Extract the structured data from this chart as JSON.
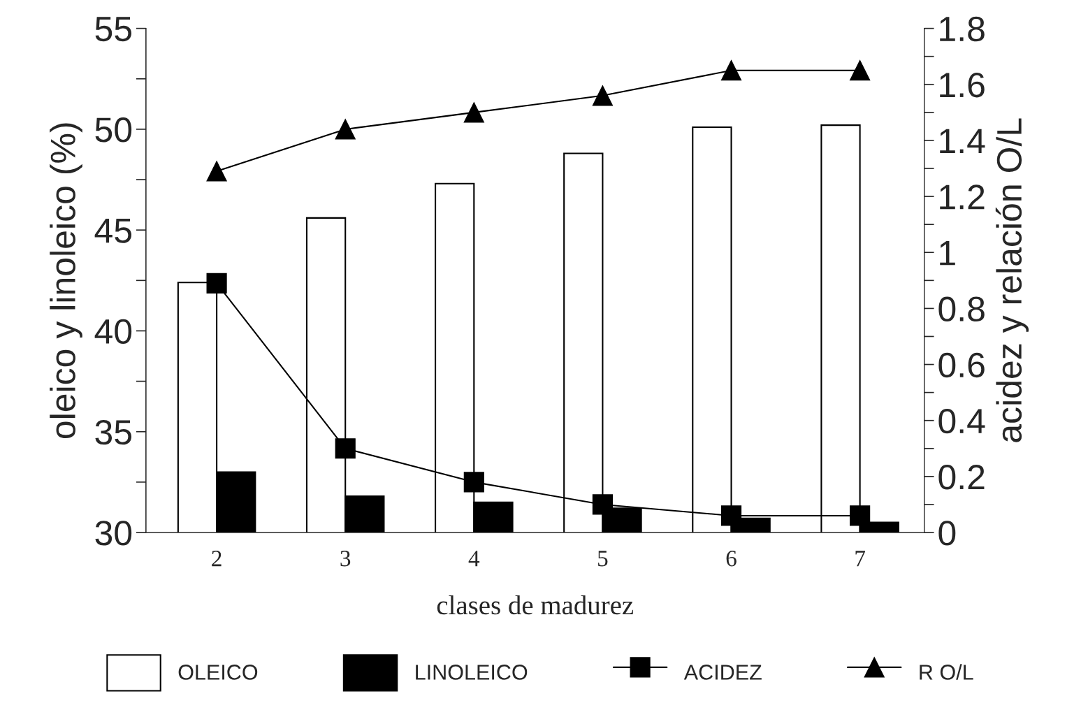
{
  "chart_data": {
    "type": "bar",
    "xlabel": "clases de madurez",
    "ylabel": "oleico y linoleico (%)",
    "y2label": "acidez y relación O/L",
    "categories": [
      "2",
      "3",
      "4",
      "5",
      "6",
      "7"
    ],
    "series": [
      {
        "name": "OLEICO",
        "color": "#ffffff",
        "values": [
          42.4,
          45.6,
          47.3,
          48.8,
          50.1,
          50.2
        ]
      },
      {
        "name": "LINOLEICO",
        "color": "#000000",
        "values": [
          33.0,
          31.8,
          31.5,
          31.2,
          30.7,
          30.5
        ]
      },
      {
        "name": "ACIDEZ",
        "type": "line",
        "axis": "y2",
        "color": "#000000",
        "marker": "square",
        "values": [
          0.89,
          0.3,
          0.18,
          0.1,
          0.06,
          0.06
        ]
      },
      {
        "name": "R O/L",
        "type": "line",
        "axis": "y2",
        "color": "#000000",
        "marker": "triangle",
        "values": [
          1.29,
          1.44,
          1.5,
          1.56,
          1.65,
          1.65
        ]
      }
    ],
    "ylim": [
      30,
      55
    ],
    "yticks": [
      30,
      {
        "value": 32.5,
        "label": null
      },
      35,
      {
        "value": 37.5,
        "label": null
      },
      40,
      {
        "value": 42.5,
        "label": null
      },
      45,
      {
        "value": 47.5,
        "label": null
      },
      50,
      {
        "value": 52.5,
        "label": null
      },
      55
    ],
    "y2lim": [
      0,
      1.8
    ],
    "y2ticks": [
      0,
      {
        "value": 0.1,
        "label": null
      },
      0.2,
      {
        "value": 0.3,
        "label": null
      },
      0.4,
      {
        "value": 0.5,
        "label": null
      },
      0.6,
      {
        "value": 0.7,
        "label": null
      },
      0.8,
      {
        "value": 0.9,
        "label": null
      },
      1,
      {
        "value": 1.1,
        "label": null
      },
      1.2,
      {
        "value": 1.3,
        "label": null
      },
      1.4,
      {
        "value": 1.5,
        "label": null
      },
      1.6,
      {
        "value": 1.7,
        "label": null
      },
      1.8
    ],
    "legend": "bottom",
    "grid": false,
    "line_style": "solid"
  }
}
